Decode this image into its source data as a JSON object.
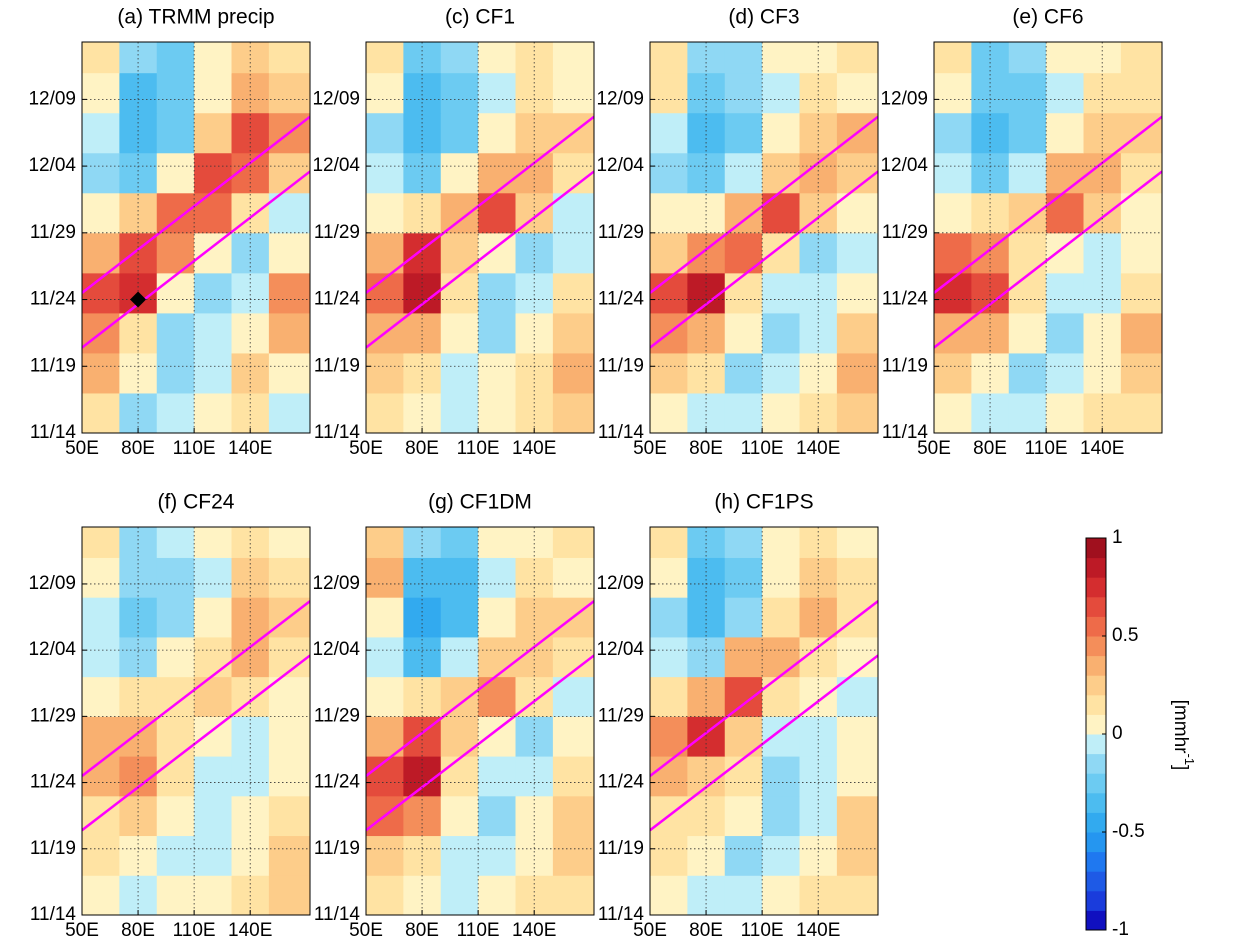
{
  "chart_data": [
    {
      "type": "heatmap",
      "title": "(a) TRMM precip",
      "x": [
        60,
        80,
        100,
        120,
        140,
        160
      ],
      "y": [
        1.5,
        4.5,
        7.5,
        10.5,
        13.5,
        16.5,
        19.5,
        22.5,
        25.5,
        28.5
      ],
      "z": [
        [
          0.1,
          -0.2,
          -0.1,
          0,
          0.1,
          -0.1
        ],
        [
          0.3,
          0,
          -0.2,
          -0.1,
          0.2,
          0
        ],
        [
          0.4,
          0.1,
          -0.2,
          -0.1,
          0,
          0.3
        ],
        [
          0.6,
          0.7,
          0,
          -0.2,
          -0.1,
          0.4
        ],
        [
          0.3,
          0.6,
          0.4,
          0,
          -0.2,
          0
        ],
        [
          0,
          0.2,
          0.5,
          0.5,
          0.1,
          -0.1
        ],
        [
          -0.2,
          -0.3,
          0,
          0.6,
          0.5,
          0.2
        ],
        [
          -0.1,
          -0.4,
          -0.3,
          0.2,
          0.6,
          0.4
        ],
        [
          0,
          -0.4,
          -0.3,
          0,
          0.3,
          0.2
        ],
        [
          0.1,
          -0.2,
          -0.3,
          0,
          0.2,
          0.1
        ]
      ],
      "xlim": [
        50,
        172
      ],
      "ylim": [
        0,
        29.3
      ],
      "xticks": [
        {
          "value": 50,
          "label": "50E"
        },
        {
          "value": 80,
          "label": "80E"
        },
        {
          "value": 110,
          "label": "110E"
        },
        {
          "value": 140,
          "label": "140E"
        }
      ],
      "yticks": [
        {
          "value": 0,
          "label": "11/14"
        },
        {
          "value": 5,
          "label": "11/19"
        },
        {
          "value": 10,
          "label": "11/24"
        },
        {
          "value": 15,
          "label": "11/29"
        },
        {
          "value": 20,
          "label": "12/04"
        },
        {
          "value": 25,
          "label": "12/09"
        }
      ],
      "grid": true,
      "lines": [
        {
          "color": "#ff00ff",
          "x": [
            50,
            172
          ],
          "y": [
            10.5,
            23.7
          ]
        },
        {
          "color": "#ff00ff",
          "x": [
            50,
            172
          ],
          "y": [
            6.4,
            19.6
          ]
        }
      ],
      "marker": {
        "x": 80,
        "y": 10,
        "color": "#000000"
      }
    },
    {
      "type": "heatmap",
      "title": "(c) CF1",
      "x": [
        60,
        80,
        100,
        120,
        140,
        160
      ],
      "y": [
        1.5,
        4.5,
        7.5,
        10.5,
        13.5,
        16.5,
        19.5,
        22.5,
        25.5,
        28.5
      ],
      "z": [
        [
          0.1,
          0,
          -0.1,
          0,
          0.1,
          0.2
        ],
        [
          0.2,
          0.1,
          -0.1,
          0,
          0.1,
          0.3
        ],
        [
          0.3,
          0.3,
          0,
          -0.2,
          0,
          0.2
        ],
        [
          0.5,
          0.8,
          0.1,
          -0.2,
          -0.1,
          0.1
        ],
        [
          0.3,
          0.7,
          0.2,
          0,
          -0.2,
          -0.1
        ],
        [
          0,
          0.1,
          0.3,
          0.6,
          0.2,
          -0.1
        ],
        [
          -0.1,
          -0.3,
          0,
          0.3,
          0.3,
          0.1
        ],
        [
          -0.2,
          -0.4,
          -0.3,
          0,
          0.2,
          0.2
        ],
        [
          0,
          -0.4,
          -0.3,
          -0.1,
          0.1,
          0
        ],
        [
          0.1,
          -0.3,
          -0.2,
          0,
          0.1,
          0
        ]
      ],
      "xlim": [
        50,
        172
      ],
      "ylim": [
        0,
        29.3
      ],
      "xticks": [
        {
          "value": 50,
          "label": "50E"
        },
        {
          "value": 80,
          "label": "80E"
        },
        {
          "value": 110,
          "label": "110E"
        },
        {
          "value": 140,
          "label": "140E"
        }
      ],
      "yticks": [
        {
          "value": 0,
          "label": "11/14"
        },
        {
          "value": 5,
          "label": "11/19"
        },
        {
          "value": 10,
          "label": "11/24"
        },
        {
          "value": 15,
          "label": "11/29"
        },
        {
          "value": 20,
          "label": "12/04"
        },
        {
          "value": 25,
          "label": "12/09"
        }
      ],
      "grid": true,
      "lines": [
        {
          "color": "#ff00ff",
          "x": [
            50,
            172
          ],
          "y": [
            10.5,
            23.7
          ]
        },
        {
          "color": "#ff00ff",
          "x": [
            50,
            172
          ],
          "y": [
            6.4,
            19.6
          ]
        }
      ]
    },
    {
      "type": "heatmap",
      "title": "(d) CF3",
      "x": [
        60,
        80,
        100,
        120,
        140,
        160
      ],
      "y": [
        1.5,
        4.5,
        7.5,
        10.5,
        13.5,
        16.5,
        19.5,
        22.5,
        25.5,
        28.5
      ],
      "z": [
        [
          0,
          -0.1,
          -0.1,
          0,
          0.1,
          0.2
        ],
        [
          0.2,
          0.1,
          -0.2,
          -0.1,
          0,
          0.3
        ],
        [
          0.4,
          0.3,
          0,
          -0.2,
          -0.1,
          0.2
        ],
        [
          0.6,
          0.8,
          0.1,
          -0.1,
          -0.1,
          0
        ],
        [
          0.2,
          0.4,
          0.5,
          0.1,
          -0.2,
          -0.1
        ],
        [
          0,
          0,
          0.3,
          0.6,
          0.2,
          0
        ],
        [
          -0.2,
          -0.3,
          -0.1,
          0.2,
          0.3,
          0.2
        ],
        [
          -0.1,
          -0.4,
          -0.3,
          0,
          0.2,
          0.3
        ],
        [
          0.1,
          -0.3,
          -0.2,
          -0.1,
          0.1,
          0
        ],
        [
          0.1,
          -0.2,
          -0.2,
          0,
          0,
          0.1
        ]
      ],
      "xlim": [
        50,
        172
      ],
      "ylim": [
        0,
        29.3
      ],
      "xticks": [
        {
          "value": 50,
          "label": "50E"
        },
        {
          "value": 80,
          "label": "80E"
        },
        {
          "value": 110,
          "label": "110E"
        },
        {
          "value": 140,
          "label": "140E"
        }
      ],
      "yticks": [
        {
          "value": 0,
          "label": "11/14"
        },
        {
          "value": 5,
          "label": "11/19"
        },
        {
          "value": 10,
          "label": "11/24"
        },
        {
          "value": 15,
          "label": "11/29"
        },
        {
          "value": 20,
          "label": "12/04"
        },
        {
          "value": 25,
          "label": "12/09"
        }
      ],
      "grid": true,
      "lines": [
        {
          "color": "#ff00ff",
          "x": [
            50,
            172
          ],
          "y": [
            10.5,
            23.7
          ]
        },
        {
          "color": "#ff00ff",
          "x": [
            50,
            172
          ],
          "y": [
            6.4,
            19.6
          ]
        }
      ]
    },
    {
      "type": "heatmap",
      "title": "(e) CF6",
      "x": [
        60,
        80,
        100,
        120,
        140,
        160
      ],
      "y": [
        1.5,
        4.5,
        7.5,
        10.5,
        13.5,
        16.5,
        19.5,
        22.5,
        25.5,
        28.5
      ],
      "z": [
        [
          0,
          -0.1,
          -0.1,
          0,
          0.1,
          0.1
        ],
        [
          0.2,
          0,
          -0.2,
          -0.1,
          0,
          0.2
        ],
        [
          0.3,
          0.3,
          0,
          -0.2,
          0,
          0.3
        ],
        [
          0.7,
          0.6,
          0.1,
          -0.1,
          -0.1,
          0.1
        ],
        [
          0.5,
          0.4,
          0.1,
          0,
          -0.1,
          0
        ],
        [
          0,
          0.1,
          0.2,
          0.5,
          0.2,
          0
        ],
        [
          -0.1,
          -0.3,
          -0.1,
          0.3,
          0.3,
          0.1
        ],
        [
          -0.2,
          -0.4,
          -0.3,
          0,
          0.2,
          0.2
        ],
        [
          0,
          -0.3,
          -0.3,
          -0.1,
          0.1,
          0.1
        ],
        [
          0.1,
          -0.3,
          -0.2,
          0,
          0,
          0.1
        ]
      ],
      "xlim": [
        50,
        172
      ],
      "ylim": [
        0,
        29.3
      ],
      "xticks": [
        {
          "value": 50,
          "label": "50E"
        },
        {
          "value": 80,
          "label": "80E"
        },
        {
          "value": 110,
          "label": "110E"
        },
        {
          "value": 140,
          "label": "140E"
        }
      ],
      "yticks": [
        {
          "value": 0,
          "label": "11/14"
        },
        {
          "value": 5,
          "label": "11/19"
        },
        {
          "value": 10,
          "label": "11/24"
        },
        {
          "value": 15,
          "label": "11/29"
        },
        {
          "value": 20,
          "label": "12/04"
        },
        {
          "value": 25,
          "label": "12/09"
        }
      ],
      "grid": true,
      "lines": [
        {
          "color": "#ff00ff",
          "x": [
            50,
            172
          ],
          "y": [
            10.5,
            23.7
          ]
        },
        {
          "color": "#ff00ff",
          "x": [
            50,
            172
          ],
          "y": [
            6.4,
            19.6
          ]
        }
      ]
    },
    {
      "type": "heatmap",
      "title": "(f) CF24",
      "x": [
        60,
        80,
        100,
        120,
        140,
        160
      ],
      "y": [
        1.5,
        4.5,
        7.5,
        10.5,
        13.5,
        16.5,
        19.5,
        22.5,
        25.5,
        28.5
      ],
      "z": [
        [
          0,
          -0.1,
          0,
          0,
          0.1,
          0.2
        ],
        [
          0.1,
          0,
          -0.1,
          -0.1,
          0,
          0.2
        ],
        [
          0.1,
          0.2,
          0,
          -0.1,
          0,
          0.1
        ],
        [
          0.3,
          0.4,
          0.1,
          -0.1,
          -0.1,
          0
        ],
        [
          0.3,
          0.3,
          0.1,
          0,
          -0.1,
          0
        ],
        [
          0,
          0.1,
          0.1,
          0.2,
          0.1,
          0
        ],
        [
          -0.1,
          -0.2,
          0,
          0.1,
          0.3,
          0.1
        ],
        [
          -0.1,
          -0.3,
          -0.2,
          0,
          0.3,
          0.2
        ],
        [
          0,
          -0.2,
          -0.2,
          -0.1,
          0.2,
          0.1
        ],
        [
          0.1,
          -0.2,
          -0.1,
          0,
          0.1,
          0
        ]
      ],
      "xlim": [
        50,
        172
      ],
      "ylim": [
        0,
        29.3
      ],
      "xticks": [
        {
          "value": 50,
          "label": "50E"
        },
        {
          "value": 80,
          "label": "80E"
        },
        {
          "value": 110,
          "label": "110E"
        },
        {
          "value": 140,
          "label": "140E"
        }
      ],
      "yticks": [
        {
          "value": 0,
          "label": "11/14"
        },
        {
          "value": 5,
          "label": "11/19"
        },
        {
          "value": 10,
          "label": "11/24"
        },
        {
          "value": 15,
          "label": "11/29"
        },
        {
          "value": 20,
          "label": "12/04"
        },
        {
          "value": 25,
          "label": "12/09"
        }
      ],
      "grid": true,
      "lines": [
        {
          "color": "#ff00ff",
          "x": [
            50,
            172
          ],
          "y": [
            10.5,
            23.7
          ]
        },
        {
          "color": "#ff00ff",
          "x": [
            50,
            172
          ],
          "y": [
            6.4,
            19.6
          ]
        }
      ]
    },
    {
      "type": "heatmap",
      "title": "(g) CF1DM",
      "x": [
        60,
        80,
        100,
        120,
        140,
        160
      ],
      "y": [
        1.5,
        4.5,
        7.5,
        10.5,
        13.5,
        16.5,
        19.5,
        22.5,
        25.5,
        28.5
      ],
      "z": [
        [
          0.1,
          0,
          -0.1,
          0,
          0.1,
          0.1
        ],
        [
          0.2,
          0.1,
          -0.1,
          -0.1,
          0,
          0.2
        ],
        [
          0.5,
          0.4,
          0,
          -0.2,
          0,
          0.2
        ],
        [
          0.6,
          0.8,
          0.1,
          -0.1,
          -0.1,
          0.1
        ],
        [
          0.3,
          0.6,
          0.2,
          0,
          -0.2,
          0
        ],
        [
          0,
          0.1,
          0.2,
          0.4,
          0.1,
          -0.1
        ],
        [
          -0.1,
          -0.4,
          -0.1,
          0.2,
          0.2,
          0.1
        ],
        [
          0,
          -0.5,
          -0.4,
          0,
          0.2,
          0.2
        ],
        [
          0.3,
          -0.4,
          -0.4,
          -0.1,
          0.1,
          0
        ],
        [
          0.2,
          -0.2,
          -0.3,
          0,
          0,
          0.1
        ]
      ],
      "xlim": [
        50,
        172
      ],
      "ylim": [
        0,
        29.3
      ],
      "xticks": [
        {
          "value": 50,
          "label": "50E"
        },
        {
          "value": 80,
          "label": "80E"
        },
        {
          "value": 110,
          "label": "110E"
        },
        {
          "value": 140,
          "label": "140E"
        }
      ],
      "yticks": [
        {
          "value": 0,
          "label": "11/14"
        },
        {
          "value": 5,
          "label": "11/19"
        },
        {
          "value": 10,
          "label": "11/24"
        },
        {
          "value": 15,
          "label": "11/29"
        },
        {
          "value": 20,
          "label": "12/04"
        },
        {
          "value": 25,
          "label": "12/09"
        }
      ],
      "grid": true,
      "lines": [
        {
          "color": "#ff00ff",
          "x": [
            50,
            172
          ],
          "y": [
            10.5,
            23.7
          ]
        },
        {
          "color": "#ff00ff",
          "x": [
            50,
            172
          ],
          "y": [
            6.4,
            19.6
          ]
        }
      ]
    },
    {
      "type": "heatmap",
      "title": "(h) CF1PS",
      "x": [
        60,
        80,
        100,
        120,
        140,
        160
      ],
      "y": [
        1.5,
        4.5,
        7.5,
        10.5,
        13.5,
        16.5,
        19.5,
        22.5,
        25.5,
        28.5
      ],
      "z": [
        [
          0,
          -0.1,
          -0.1,
          0,
          0.1,
          0.1
        ],
        [
          0.1,
          0,
          -0.2,
          -0.1,
          0,
          0.2
        ],
        [
          0.1,
          0.1,
          0,
          -0.2,
          -0.1,
          0.2
        ],
        [
          0.3,
          0.2,
          0.1,
          -0.2,
          -0.1,
          0
        ],
        [
          0.4,
          0.7,
          0.2,
          -0.1,
          -0.1,
          0
        ],
        [
          0.1,
          0.3,
          0.6,
          0.1,
          0,
          -0.1
        ],
        [
          -0.1,
          -0.2,
          0.3,
          0.3,
          0.1,
          0
        ],
        [
          -0.2,
          -0.4,
          -0.2,
          0.1,
          0.3,
          0.1
        ],
        [
          0,
          -0.4,
          -0.3,
          0,
          0.2,
          0.1
        ],
        [
          0.1,
          -0.3,
          -0.2,
          0,
          0.1,
          0
        ]
      ],
      "xlim": [
        50,
        172
      ],
      "ylim": [
        0,
        29.3
      ],
      "xticks": [
        {
          "value": 50,
          "label": "50E"
        },
        {
          "value": 80,
          "label": "80E"
        },
        {
          "value": 110,
          "label": "110E"
        },
        {
          "value": 140,
          "label": "140E"
        }
      ],
      "yticks": [
        {
          "value": 0,
          "label": "11/14"
        },
        {
          "value": 5,
          "label": "11/19"
        },
        {
          "value": 10,
          "label": "11/24"
        },
        {
          "value": 15,
          "label": "11/29"
        },
        {
          "value": 20,
          "label": "12/04"
        },
        {
          "value": 25,
          "label": "12/09"
        }
      ],
      "grid": true,
      "lines": [
        {
          "color": "#ff00ff",
          "x": [
            50,
            172
          ],
          "y": [
            10.5,
            23.7
          ]
        },
        {
          "color": "#ff00ff",
          "x": [
            50,
            172
          ],
          "y": [
            6.4,
            19.6
          ]
        }
      ]
    },
    {
      "type": "colorbar",
      "label": "[mmhr",
      "label_sup": "-1",
      "label_end": "]",
      "clim": [
        -1,
        1
      ],
      "ticks": [
        -1,
        -0.5,
        0,
        0.5,
        1
      ],
      "colors": [
        "#1010c0",
        "#1a3cdc",
        "#1e5ae6",
        "#1f78f0",
        "#2596f0",
        "#32aaef",
        "#4cbcf0",
        "#6ccbf2",
        "#8fd8f4",
        "#bfeef8",
        "#fff3c4",
        "#ffe3a3",
        "#fdcd8a",
        "#f9b070",
        "#f48e5a",
        "#ee6b49",
        "#e44b3c",
        "#d42d2f",
        "#bd1a26",
        "#a0101e"
      ]
    }
  ]
}
